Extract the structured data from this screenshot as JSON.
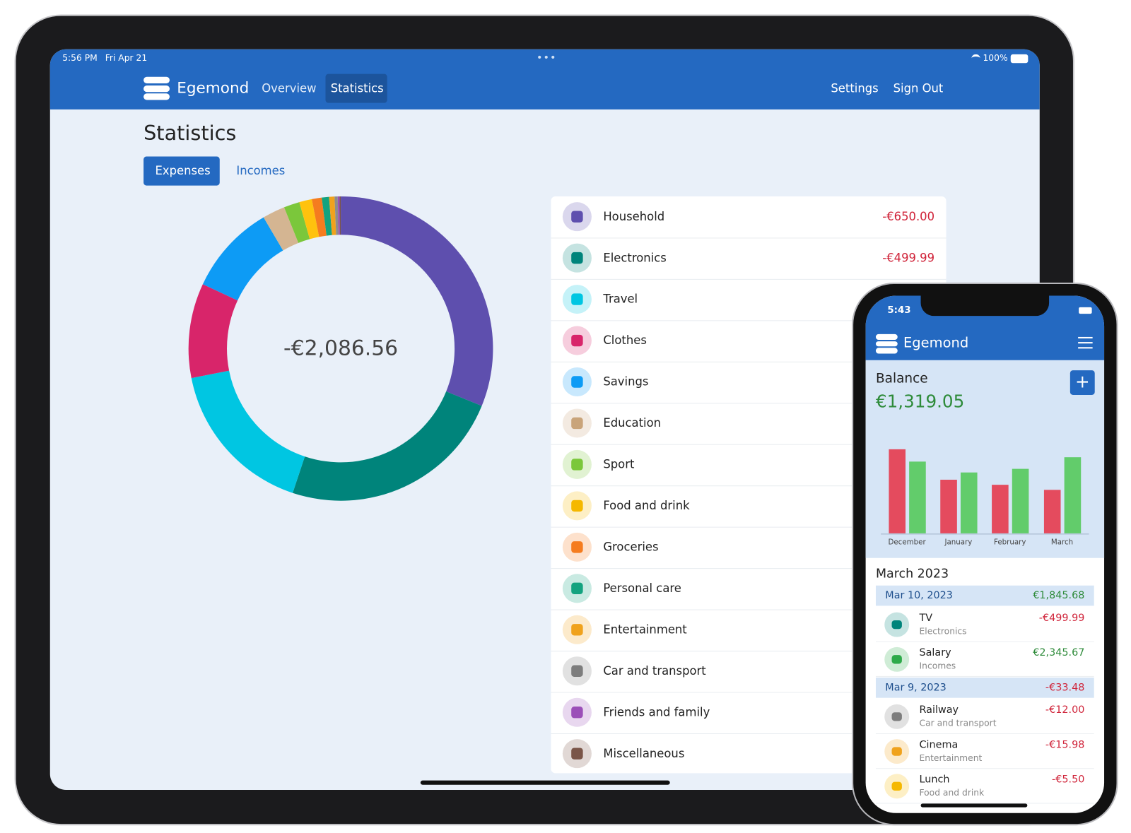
{
  "tablet": {
    "status": {
      "time": "5:56 PM",
      "date": "Fri Apr 21",
      "battery": "100%"
    },
    "nav": {
      "brand": "Egemond",
      "links": [
        "Overview",
        "Statistics"
      ],
      "right": [
        "Settings",
        "Sign Out"
      ]
    },
    "page_title": "Statistics",
    "tabs": [
      "Expenses",
      "Incomes"
    ],
    "donut": {
      "type": "pie",
      "total_label": "-€2,086.56",
      "values": [
        650,
        499.99,
        350,
        210,
        200,
        50,
        35,
        28,
        22,
        16,
        12,
        7,
        4,
        2.57
      ],
      "colors": [
        "#5e4fae",
        "#00847b",
        "#00c6e2",
        "#d8256a",
        "#0d9bf5",
        "#d4b592",
        "#7bc73b",
        "#ffc20e",
        "#f57c1f",
        "#13a37f",
        "#f0a21c",
        "#8c8c8c",
        "#9b4fb8",
        "#7a5548"
      ]
    },
    "categories": [
      {
        "name": "Household",
        "amount": "-€650.00",
        "color": "#5e4fae"
      },
      {
        "name": "Electronics",
        "amount": "-€499.99",
        "color": "#00847b"
      },
      {
        "name": "Travel",
        "color": "#00c6e2"
      },
      {
        "name": "Clothes",
        "color": "#d8256a"
      },
      {
        "name": "Savings",
        "color": "#0d9bf5"
      },
      {
        "name": "Education",
        "color": "#c9a47a"
      },
      {
        "name": "Sport",
        "color": "#7bc73b"
      },
      {
        "name": "Food and drink",
        "color": "#f5b800"
      },
      {
        "name": "Groceries",
        "color": "#f57c1f"
      },
      {
        "name": "Personal care",
        "color": "#13a37f"
      },
      {
        "name": "Entertainment",
        "color": "#f0a21c"
      },
      {
        "name": "Car and transport",
        "color": "#7d7d7d"
      },
      {
        "name": "Friends and family",
        "color": "#9b4fb8"
      },
      {
        "name": "Miscellaneous",
        "color": "#7a5548"
      }
    ]
  },
  "phone": {
    "time": "5:43",
    "brand": "Egemond",
    "balance_title": "Balance",
    "balance": "€1,319.05",
    "chart": {
      "type": "bar",
      "categories": [
        "December",
        "January",
        "February",
        "March"
      ],
      "series": [
        {
          "color": "#e44b5e",
          "values": [
            116,
            74,
            67,
            60
          ]
        },
        {
          "color": "#62cc6b",
          "values": [
            99,
            84,
            89,
            105
          ]
        }
      ],
      "ylim": [
        0,
        120
      ]
    },
    "month": "March 2023",
    "days": [
      {
        "date": "Mar 10, 2023",
        "total": "€1,845.68",
        "total_color": "#2e8b3a",
        "items": [
          {
            "title": "TV",
            "category": "Electronics",
            "amount": "-€499.99",
            "amount_color": "#d0243a",
            "icon_color": "#00847b"
          },
          {
            "title": "Salary",
            "category": "Incomes",
            "amount": "€2,345.67",
            "amount_color": "#2e8b3a",
            "icon_color": "#2eaa4a"
          }
        ]
      },
      {
        "date": "Mar 9, 2023",
        "total": "-€33.48",
        "total_color": "#d0243a",
        "items": [
          {
            "title": "Railway",
            "category": "Car and transport",
            "amount": "-€12.00",
            "amount_color": "#d0243a",
            "icon_color": "#7d7d7d"
          },
          {
            "title": "Cinema",
            "category": "Entertainment",
            "amount": "-€15.98",
            "amount_color": "#d0243a",
            "icon_color": "#f0a21c"
          },
          {
            "title": "Lunch",
            "category": "Food and drink",
            "amount": "-€5.50",
            "amount_color": "#d0243a",
            "icon_color": "#f5b800"
          }
        ]
      }
    ]
  }
}
